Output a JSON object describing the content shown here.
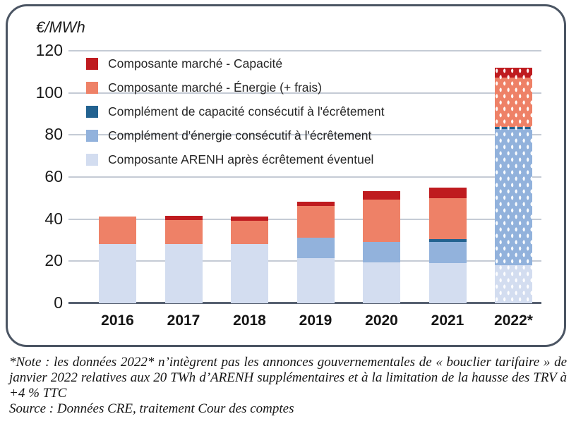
{
  "unit_label": "€/MWh",
  "chart_data": {
    "type": "bar",
    "stacked": true,
    "unit": "€/MWh",
    "categories": [
      "2016",
      "2017",
      "2018",
      "2019",
      "2020",
      "2021",
      "2022*"
    ],
    "y_ticks": [
      0,
      20,
      40,
      60,
      80,
      100,
      120
    ],
    "ylim": [
      0,
      120
    ],
    "grid": true,
    "hatched_category": "2022*",
    "series": [
      {
        "name": "Composante ARENH après écrêtement éventuel",
        "color": "#d3ddf0",
        "values": [
          28,
          28,
          28,
          21.3,
          19.5,
          19,
          18
        ]
      },
      {
        "name": "Complément d'énergie consécutif à l'écrêtement",
        "color": "#92b2dc",
        "values": [
          0,
          0,
          0,
          9.8,
          9.7,
          10.1,
          64.8
        ]
      },
      {
        "name": "Complément de capacité consécutif à l'écrêtement",
        "color": "#226290",
        "values": [
          0,
          0,
          0,
          0,
          0,
          1.4,
          1.1
        ]
      },
      {
        "name": "Composante marché - Énergie (+ frais)",
        "color": "#ee8167",
        "values": [
          13.2,
          11.7,
          11.3,
          15.1,
          20.2,
          19.5,
          23.5
        ]
      },
      {
        "name": "Composante marché - Capacité",
        "color": "#bf1b1f",
        "values": [
          0,
          1.8,
          1.8,
          2,
          3.8,
          4.9,
          4.5
        ]
      }
    ],
    "legend": [
      {
        "label": "Composante marché - Capacité",
        "color": "#bf1b1f"
      },
      {
        "label": "Composante marché - Énergie (+ frais)",
        "color": "#ee8167"
      },
      {
        "label": "Complément de capacité consécutif à l'écrêtement",
        "color": "#226290"
      },
      {
        "label": "Complément d'énergie consécutif à l'écrêtement",
        "color": "#92b2dc"
      },
      {
        "label": "Composante ARENH après écrêtement éventuel",
        "color": "#d3ddf0"
      }
    ],
    "legend_position": "top-left"
  },
  "note": {
    "text": "*Note : les données 2022* n’intègrent pas les annonces gouvernementales de « bouclier tarifaire » de janvier 2022 relatives aux 20 TWh d’ARENH supplémentaires et à la limitation de la hausse des TRV à +4 % TTC",
    "source": "Source : Données CRE, traitement Cour des comptes"
  }
}
